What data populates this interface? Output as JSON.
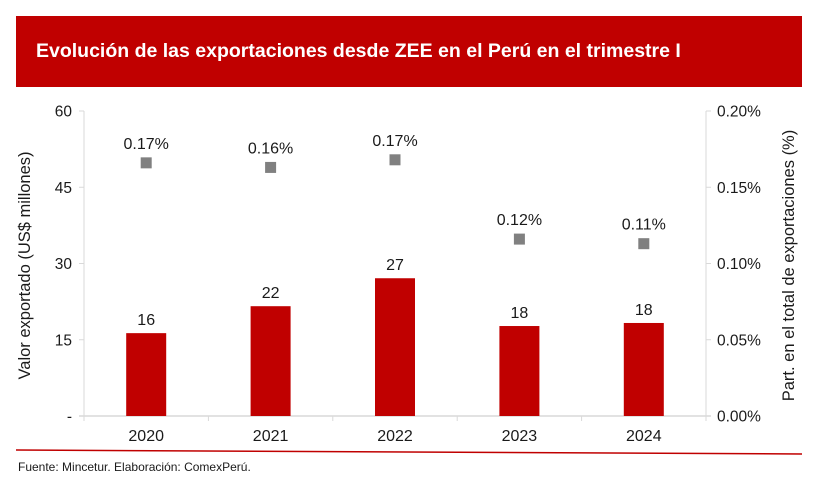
{
  "header": {
    "title": "Evolución de las exportaciones desde ZEE en el Perú en el trimestre I"
  },
  "footer": {
    "source": "Fuente: Mincetur. Elaboración: ComexPerú."
  },
  "colors": {
    "banner": "#c00000",
    "bar": "#c00000",
    "marker": "#808080",
    "axis": "#d9d9d9",
    "rule": "#c00000"
  },
  "chart_data": {
    "type": "bar",
    "title": "Evolución de las exportaciones desde ZEE en el Perú en el trimestre I",
    "categories": [
      "2020",
      "2021",
      "2022",
      "2023",
      "2024"
    ],
    "series": [
      {
        "name": "Valor exportado (US$ millones)",
        "type": "bar",
        "axis": "left",
        "values": [
          16.3,
          21.6,
          27.1,
          17.7,
          18.3
        ],
        "labels": [
          "16",
          "22",
          "27",
          "18",
          "18"
        ]
      },
      {
        "name": "Part. en el total de exportaciones (%)",
        "type": "scatter",
        "axis": "right",
        "values": [
          0.166,
          0.163,
          0.168,
          0.116,
          0.113
        ],
        "labels": [
          "0.17%",
          "0.16%",
          "0.17%",
          "0.12%",
          "0.11%"
        ]
      }
    ],
    "ylabel": "Valor exportado (US$ millones)",
    "ylim": [
      0,
      60
    ],
    "yticks": [
      0,
      15,
      30,
      45,
      60
    ],
    "ytick_labels": [
      "-",
      "15",
      "30",
      "45",
      "60"
    ],
    "y2label": "Part. en el total de exportaciones (%)",
    "y2lim": [
      0,
      0.2
    ],
    "y2ticks": [
      0,
      0.05,
      0.1,
      0.15,
      0.2
    ],
    "y2tick_labels": [
      "0.00%",
      "0.05%",
      "0.10%",
      "0.15%",
      "0.20%"
    ],
    "xlabel": "",
    "grid": false,
    "legend": "none"
  }
}
